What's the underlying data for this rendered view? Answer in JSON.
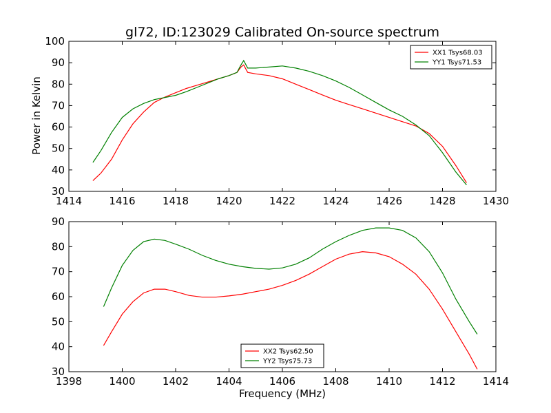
{
  "figure": {
    "title": "gl72, ID:123029 Calibrated On-source spectrum",
    "ylabel": "Power in Kelvin",
    "xlabel": "Frequency (MHz)"
  },
  "chart_data": [
    {
      "type": "line",
      "xlim": [
        1414,
        1430
      ],
      "ylim": [
        30,
        100
      ],
      "xticks": [
        1414,
        1416,
        1418,
        1420,
        1422,
        1424,
        1426,
        1428,
        1430
      ],
      "yticks": [
        30,
        40,
        50,
        60,
        70,
        80,
        90,
        100
      ],
      "legend_position": "top-right",
      "series": [
        {
          "name": "XX1 Tsys68.03",
          "color": "#ff0000",
          "x": [
            1414.9,
            1415.2,
            1415.6,
            1416.0,
            1416.4,
            1416.8,
            1417.2,
            1417.6,
            1418.0,
            1418.4,
            1418.8,
            1419.2,
            1419.6,
            1420.0,
            1420.3,
            1420.45,
            1420.55,
            1420.7,
            1421.0,
            1421.5,
            1422.0,
            1422.5,
            1423.0,
            1423.5,
            1424.0,
            1424.5,
            1425.0,
            1425.5,
            1426.0,
            1426.5,
            1427.0,
            1427.5,
            1428.0,
            1428.5,
            1428.9
          ],
          "values": [
            35,
            38.5,
            45,
            54,
            61.5,
            67,
            71.5,
            74,
            76,
            78,
            79.5,
            81,
            82.5,
            84,
            85.5,
            88,
            89,
            85.5,
            84.8,
            84,
            82.5,
            80,
            77.5,
            75,
            72.5,
            70.5,
            68.5,
            66.5,
            64.5,
            62.5,
            60.5,
            57,
            51,
            42,
            34
          ]
        },
        {
          "name": "YY1 Tsys71.53",
          "color": "#008000",
          "x": [
            1414.9,
            1415.2,
            1415.6,
            1416.0,
            1416.4,
            1416.8,
            1417.2,
            1417.6,
            1418.0,
            1418.4,
            1418.8,
            1419.2,
            1419.6,
            1420.0,
            1420.3,
            1420.45,
            1420.55,
            1420.7,
            1421.0,
            1421.5,
            1422.0,
            1422.5,
            1423.0,
            1423.5,
            1424.0,
            1424.5,
            1425.0,
            1425.5,
            1426.0,
            1426.5,
            1427.0,
            1427.5,
            1428.0,
            1428.5,
            1428.9
          ],
          "values": [
            43.5,
            49,
            57.5,
            64.5,
            68.5,
            71,
            72.8,
            73.8,
            74.8,
            76.5,
            78.5,
            80.5,
            82.5,
            84,
            85.5,
            89,
            91,
            87.5,
            87.5,
            88,
            88.5,
            87.5,
            86,
            84,
            81.5,
            78.5,
            75,
            71.5,
            68,
            65,
            61,
            56,
            48,
            39,
            33
          ]
        }
      ]
    },
    {
      "type": "line",
      "xlim": [
        1398,
        1414
      ],
      "ylim": [
        30,
        90
      ],
      "xticks": [
        1398,
        1400,
        1402,
        1404,
        1406,
        1408,
        1410,
        1412,
        1414
      ],
      "yticks": [
        30,
        40,
        50,
        60,
        70,
        80,
        90
      ],
      "legend_position": "bottom-center",
      "series": [
        {
          "name": "XX2 Tsys62.50",
          "color": "#ff0000",
          "x": [
            1399.3,
            1399.6,
            1400.0,
            1400.4,
            1400.8,
            1401.2,
            1401.6,
            1402.0,
            1402.5,
            1403.0,
            1403.5,
            1404.0,
            1404.5,
            1405.0,
            1405.5,
            1406.0,
            1406.5,
            1407.0,
            1407.5,
            1408.0,
            1408.5,
            1409.0,
            1409.5,
            1410.0,
            1410.5,
            1411.0,
            1411.5,
            1412.0,
            1412.5,
            1413.0,
            1413.3
          ],
          "values": [
            40.5,
            46,
            53,
            58,
            61.5,
            63,
            63,
            62,
            60.5,
            59.8,
            59.8,
            60.3,
            61,
            62,
            63,
            64.5,
            66.5,
            69,
            72,
            75,
            77,
            78,
            77.5,
            76,
            73,
            69,
            63,
            55,
            46,
            37,
            31
          ]
        },
        {
          "name": "YY2 Tsys75.73",
          "color": "#008000",
          "x": [
            1399.3,
            1399.6,
            1400.0,
            1400.4,
            1400.8,
            1401.2,
            1401.6,
            1402.0,
            1402.5,
            1403.0,
            1403.5,
            1404.0,
            1404.5,
            1405.0,
            1405.5,
            1406.0,
            1406.5,
            1407.0,
            1407.5,
            1408.0,
            1408.5,
            1409.0,
            1409.5,
            1410.0,
            1410.5,
            1411.0,
            1411.5,
            1412.0,
            1412.5,
            1413.0,
            1413.3
          ],
          "values": [
            56,
            63.5,
            72.5,
            78.5,
            82,
            83,
            82.5,
            81,
            79,
            76.5,
            74.5,
            73,
            72,
            71.3,
            71,
            71.5,
            73,
            75.5,
            79,
            82,
            84.5,
            86.5,
            87.5,
            87.5,
            86.5,
            83.5,
            78,
            69.5,
            59,
            50,
            45
          ]
        }
      ]
    }
  ]
}
